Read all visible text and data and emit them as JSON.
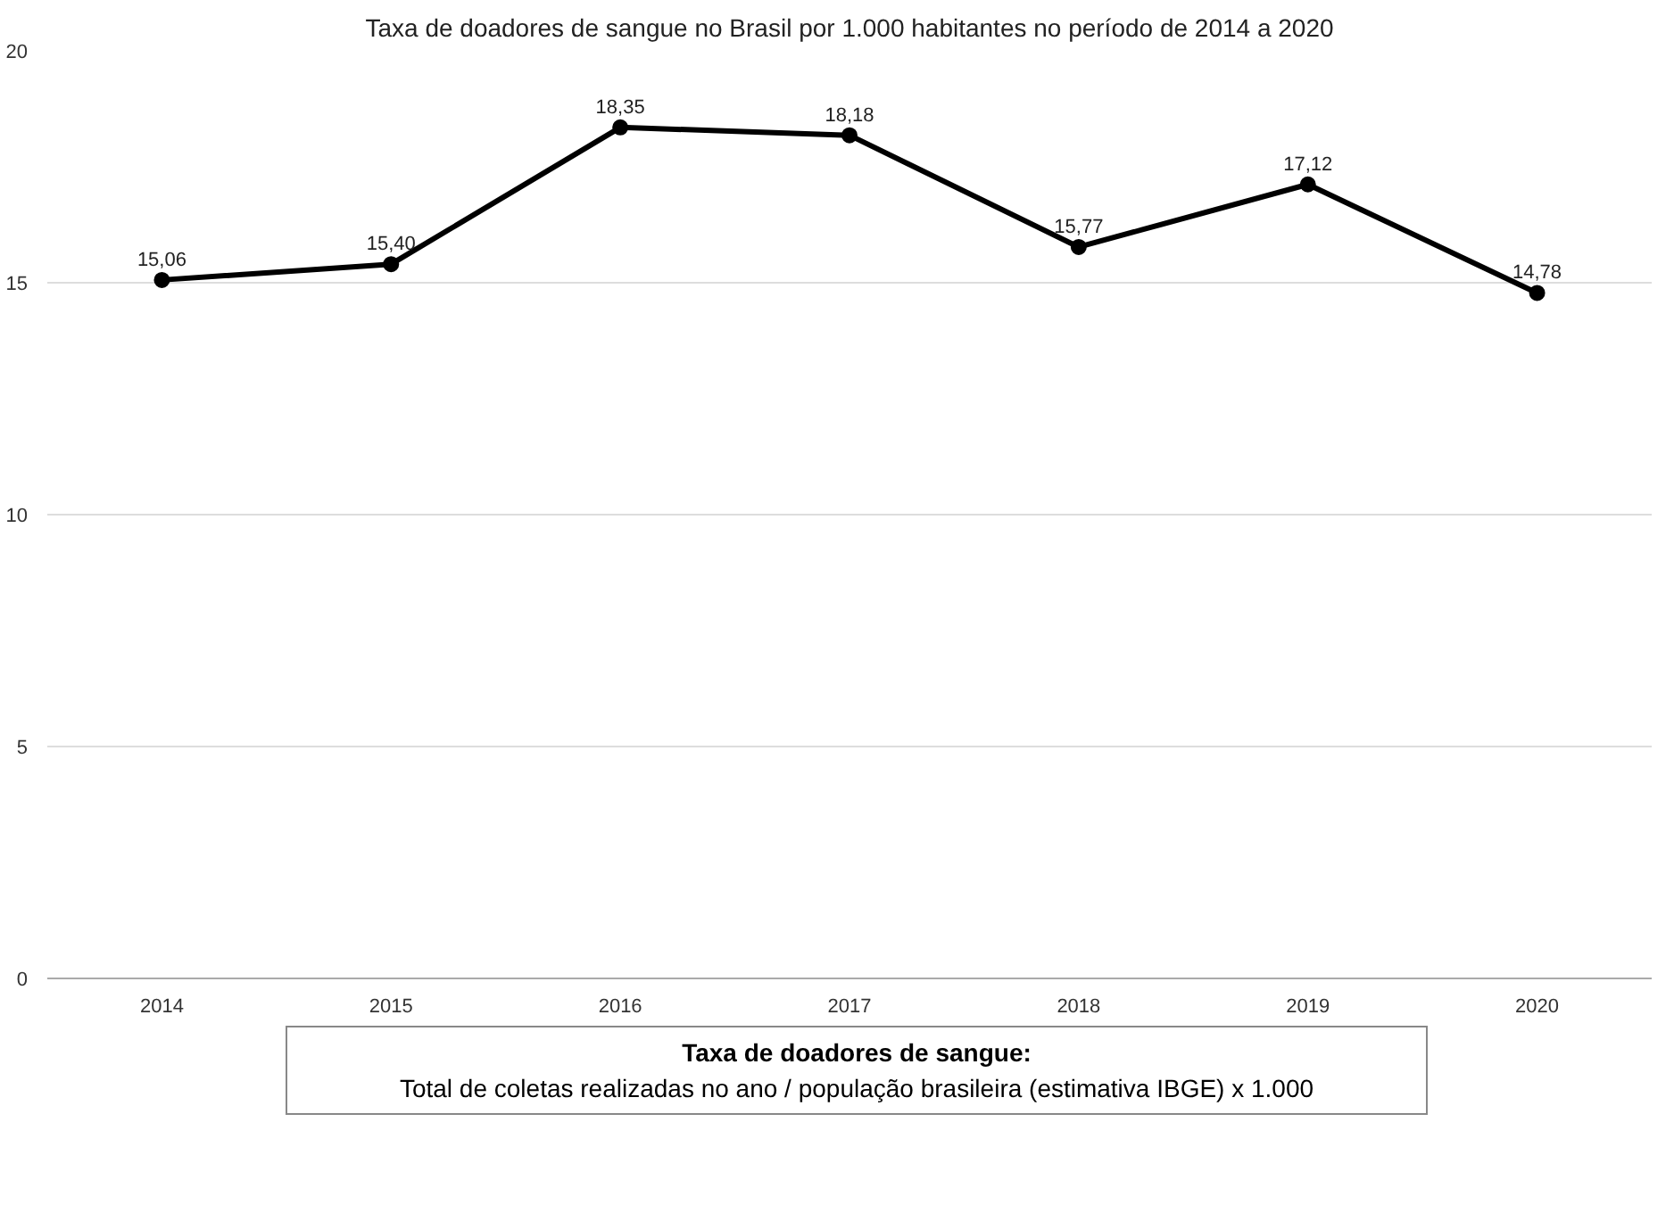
{
  "chart_data": {
    "type": "line",
    "title": "Taxa de doadores de sangue no Brasil por 1.000 habitantes no período de 2014 a 2020",
    "categories": [
      "2014",
      "2015",
      "2016",
      "2017",
      "2018",
      "2019",
      "2020"
    ],
    "values": [
      15.06,
      15.4,
      18.35,
      18.18,
      15.77,
      17.12,
      14.78
    ],
    "value_labels": [
      "15,06",
      "15,40",
      "18,35",
      "18,18",
      "15,77",
      "17,12",
      "14,78"
    ],
    "color": "#000000",
    "marker": "circle",
    "line_style": "solid",
    "ylim": [
      0,
      20
    ],
    "yticks": [
      0,
      5,
      10,
      15,
      20
    ],
    "grid": "y",
    "annotations": [
      "Taxa de doadores de sangue:",
      "Total de coletas realizadas no ano / população brasileira (estimativa IBGE) x 1.000"
    ]
  }
}
